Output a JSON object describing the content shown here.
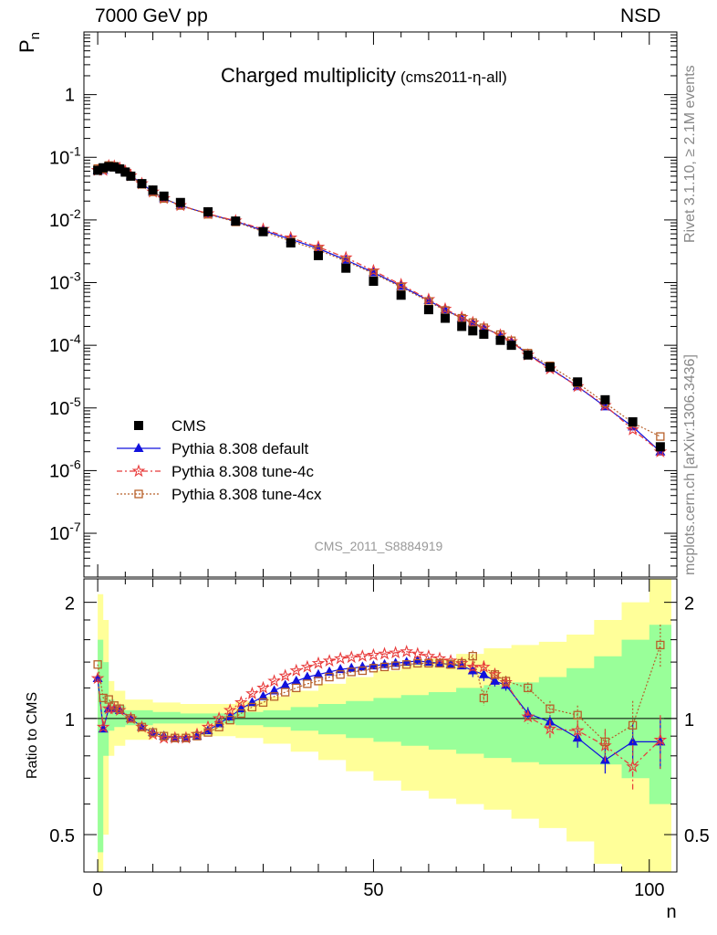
{
  "header": {
    "energy_label": "7000 GeV pp",
    "process_label": "NSD"
  },
  "side_labels": {
    "rivet": "Rivet 3.1.10, ≥ 2.1M events",
    "mcplots": "mcplots.cern.ch [arXiv:1306.3436]"
  },
  "chart_data": [
    {
      "type": "scatter",
      "title": "Charged multiplicity",
      "subtitle": "(cms2011-η-all)",
      "watermark": "CMS_2011_S8884919",
      "xlabel": "",
      "ylabel": "P_n",
      "yscale": "log",
      "ylim": [
        2e-08,
        10
      ],
      "xlim": [
        -2.5,
        105
      ],
      "ytick_labels": [
        "1",
        "10^-1",
        "10^-2",
        "10^-3",
        "10^-4",
        "10^-5",
        "10^-6",
        "10^-7"
      ],
      "legend_position": "lower-left",
      "series": [
        {
          "name": "CMS",
          "color": "#000000",
          "marker": "filled-square",
          "x": [
            0,
            1,
            2,
            3,
            4,
            5,
            6,
            8,
            10,
            12,
            15,
            20,
            25,
            30,
            35,
            40,
            45,
            50,
            55,
            60,
            63,
            66,
            68,
            70,
            73,
            75,
            78,
            82,
            87,
            92,
            97,
            102
          ],
          "y": [
            0.062,
            0.068,
            0.071,
            0.07,
            0.065,
            0.058,
            0.05,
            0.038,
            0.03,
            0.024,
            0.019,
            0.0135,
            0.0096,
            0.0065,
            0.0043,
            0.0027,
            0.0017,
            0.00105,
            0.00063,
            0.00037,
            0.00027,
            0.0002,
            0.00017,
            0.00015,
            0.00012,
            0.0001,
            7e-05,
            4.5e-05,
            2.6e-05,
            1.35e-05,
            6e-06,
            2.4e-06
          ]
        },
        {
          "name": "Pythia 8.308 default",
          "color": "#1111dd",
          "marker": "filled-triangle",
          "x": [
            0,
            1,
            2,
            3,
            4,
            5,
            6,
            8,
            10,
            12,
            15,
            20,
            25,
            30,
            35,
            40,
            45,
            50,
            55,
            60,
            63,
            66,
            68,
            70,
            73,
            75,
            78,
            82,
            87,
            92,
            97,
            102
          ],
          "y": [
            0.062,
            0.062,
            0.073,
            0.072,
            0.067,
            0.06,
            0.051,
            0.038,
            0.028,
            0.022,
            0.017,
            0.0125,
            0.0095,
            0.0068,
            0.0049,
            0.0035,
            0.0023,
            0.00145,
            0.00088,
            0.00052,
            0.00037,
            0.00027,
            0.00023,
            0.00019,
            0.000145,
            0.000115,
            7.2e-05,
            4.3e-05,
            2.2e-05,
            1.05e-05,
            5e-06,
            2e-06
          ]
        },
        {
          "name": "Pythia 8.308 tune-4c",
          "color": "#e83a3a",
          "marker": "open-star",
          "x": [
            0,
            1,
            2,
            3,
            4,
            5,
            6,
            8,
            10,
            12,
            15,
            20,
            25,
            30,
            35,
            40,
            45,
            50,
            55,
            60,
            63,
            66,
            68,
            70,
            73,
            75,
            78,
            82,
            87,
            92,
            97,
            102
          ],
          "y": [
            0.062,
            0.062,
            0.073,
            0.072,
            0.067,
            0.06,
            0.051,
            0.038,
            0.028,
            0.022,
            0.017,
            0.0126,
            0.0097,
            0.0071,
            0.0052,
            0.0037,
            0.0025,
            0.00155,
            0.00093,
            0.00054,
            0.00038,
            0.00028,
            0.00023,
            0.00019,
            0.000145,
            0.000115,
            7e-05,
            4.2e-05,
            2.2e-05,
            1.1e-05,
            4.5e-06,
            2e-06
          ]
        },
        {
          "name": "Pythia 8.308 tune-4cx",
          "color": "#b8602a",
          "marker": "open-square",
          "x": [
            0,
            1,
            2,
            3,
            4,
            5,
            6,
            8,
            10,
            12,
            15,
            20,
            25,
            30,
            35,
            40,
            45,
            50,
            55,
            60,
            63,
            66,
            68,
            70,
            73,
            75,
            78,
            82,
            87,
            92,
            97,
            102
          ],
          "y": [
            0.066,
            0.065,
            0.074,
            0.072,
            0.066,
            0.059,
            0.05,
            0.037,
            0.028,
            0.022,
            0.017,
            0.0123,
            0.0093,
            0.0065,
            0.0046,
            0.0033,
            0.0022,
            0.0014,
            0.00085,
            0.0005,
            0.00036,
            0.00027,
            0.00023,
            0.00019,
            0.000148,
            0.000118,
            7.5e-05,
            4.7e-05,
            2.5e-05,
            1.2e-05,
            5.8e-06,
            3.5e-06
          ]
        }
      ]
    },
    {
      "type": "line",
      "xlabel": "n",
      "ylabel": "Ratio to CMS",
      "ylim": [
        0.4,
        2.3
      ],
      "yscale": "log",
      "xlim": [
        -2.5,
        105
      ],
      "xtick_labels": [
        "0",
        "50",
        "100"
      ],
      "ytick_labels": [
        "0.5",
        "1",
        "2"
      ],
      "reference_line": 1,
      "bands": {
        "inner_color": "#99ff99",
        "outer_color": "#ffff99",
        "x": [
          0,
          1,
          2,
          3,
          5,
          10,
          15,
          20,
          25,
          30,
          35,
          40,
          45,
          50,
          55,
          60,
          65,
          70,
          75,
          80,
          85,
          90,
          95,
          100,
          104
        ],
        "inner_low": [
          0.45,
          0.8,
          0.93,
          0.95,
          0.96,
          0.97,
          0.97,
          0.97,
          0.96,
          0.95,
          0.93,
          0.91,
          0.89,
          0.87,
          0.85,
          0.83,
          0.81,
          0.79,
          0.77,
          0.76,
          0.76,
          0.76,
          0.7,
          0.6,
          0.55
        ],
        "inner_high": [
          1.6,
          1.4,
          1.12,
          1.08,
          1.05,
          1.04,
          1.03,
          1.03,
          1.04,
          1.05,
          1.07,
          1.09,
          1.11,
          1.13,
          1.15,
          1.17,
          1.2,
          1.22,
          1.24,
          1.28,
          1.35,
          1.45,
          1.6,
          1.75,
          1.8
        ],
        "outer_low": [
          0.2,
          0.5,
          0.8,
          0.85,
          0.88,
          0.9,
          0.9,
          0.9,
          0.89,
          0.86,
          0.82,
          0.78,
          0.73,
          0.69,
          0.65,
          0.62,
          0.6,
          0.58,
          0.55,
          0.52,
          0.48,
          0.42,
          0.35,
          0.3,
          0.3
        ],
        "outer_high": [
          2.1,
          1.8,
          1.25,
          1.18,
          1.12,
          1.1,
          1.09,
          1.09,
          1.11,
          1.14,
          1.18,
          1.23,
          1.28,
          1.33,
          1.38,
          1.43,
          1.47,
          1.52,
          1.55,
          1.58,
          1.65,
          1.8,
          2.0,
          2.3,
          2.3
        ]
      },
      "series": [
        {
          "name": "Pythia 8.308 default",
          "color": "#1111dd",
          "marker": "filled-triangle",
          "x": [
            0,
            1,
            2,
            3,
            4,
            6,
            8,
            10,
            12,
            14,
            16,
            18,
            20,
            22,
            24,
            26,
            28,
            30,
            32,
            34,
            36,
            38,
            40,
            42,
            44,
            46,
            48,
            50,
            52,
            54,
            56,
            58,
            60,
            62,
            64,
            66,
            68,
            70,
            72,
            74,
            78,
            82,
            87,
            92,
            97,
            102
          ],
          "y": [
            1.27,
            0.94,
            1.06,
            1.06,
            1.05,
            1.0,
            0.95,
            0.92,
            0.9,
            0.89,
            0.89,
            0.9,
            0.93,
            0.97,
            1.01,
            1.06,
            1.1,
            1.14,
            1.18,
            1.22,
            1.25,
            1.28,
            1.3,
            1.32,
            1.34,
            1.35,
            1.36,
            1.37,
            1.38,
            1.39,
            1.4,
            1.41,
            1.4,
            1.39,
            1.38,
            1.37,
            1.33,
            1.3,
            1.25,
            1.22,
            1.03,
            0.98,
            0.89,
            0.78,
            0.87,
            0.87
          ],
          "yerr": [
            0,
            0,
            0,
            0,
            0,
            0,
            0,
            0,
            0,
            0,
            0,
            0,
            0,
            0,
            0,
            0,
            0,
            0,
            0,
            0,
            0,
            0,
            0,
            0,
            0,
            0,
            0,
            0,
            0,
            0,
            0,
            0,
            0,
            0,
            0,
            0,
            0.05,
            0.05,
            0.04,
            0.04,
            0.04,
            0.04,
            0.05,
            0.06,
            0.1,
            0.13
          ]
        },
        {
          "name": "Pythia 8.308 tune-4c",
          "color": "#e83a3a",
          "marker": "open-star",
          "x": [
            0,
            1,
            2,
            3,
            4,
            6,
            8,
            10,
            12,
            14,
            16,
            18,
            20,
            22,
            24,
            26,
            28,
            30,
            32,
            34,
            36,
            38,
            40,
            42,
            44,
            46,
            48,
            50,
            52,
            54,
            56,
            58,
            60,
            62,
            64,
            66,
            68,
            70,
            72,
            74,
            78,
            82,
            87,
            92,
            97,
            102
          ],
          "y": [
            1.27,
            0.95,
            1.06,
            1.06,
            1.05,
            1.0,
            0.95,
            0.91,
            0.89,
            0.89,
            0.89,
            0.91,
            0.95,
            1.0,
            1.05,
            1.1,
            1.16,
            1.2,
            1.25,
            1.29,
            1.33,
            1.36,
            1.39,
            1.41,
            1.43,
            1.44,
            1.45,
            1.46,
            1.47,
            1.48,
            1.49,
            1.47,
            1.45,
            1.43,
            1.41,
            1.39,
            1.36,
            1.36,
            1.3,
            1.24,
            1.01,
            0.94,
            0.93,
            0.85,
            0.75,
            0.88
          ],
          "yerr": [
            0,
            0,
            0,
            0,
            0,
            0,
            0,
            0,
            0,
            0,
            0,
            0,
            0,
            0,
            0,
            0,
            0,
            0,
            0,
            0,
            0,
            0,
            0,
            0,
            0,
            0,
            0,
            0,
            0,
            0,
            0,
            0,
            0,
            0,
            0,
            0,
            0.05,
            0.05,
            0.05,
            0.04,
            0.04,
            0.05,
            0.06,
            0.08,
            0.1,
            0.14
          ]
        },
        {
          "name": "Pythia 8.308 tune-4cx",
          "color": "#b8602a",
          "marker": "open-square",
          "x": [
            0,
            1,
            2,
            3,
            4,
            6,
            8,
            10,
            12,
            14,
            16,
            18,
            20,
            22,
            24,
            26,
            28,
            30,
            32,
            34,
            36,
            38,
            40,
            42,
            44,
            46,
            48,
            50,
            52,
            54,
            56,
            58,
            60,
            62,
            64,
            66,
            68,
            70,
            72,
            74,
            78,
            82,
            87,
            92,
            97,
            102
          ],
          "y": [
            1.38,
            1.13,
            1.12,
            1.08,
            1.06,
            1.0,
            0.95,
            0.92,
            0.9,
            0.89,
            0.89,
            0.9,
            0.92,
            0.95,
            0.99,
            1.03,
            1.07,
            1.1,
            1.14,
            1.17,
            1.2,
            1.23,
            1.25,
            1.28,
            1.3,
            1.32,
            1.33,
            1.35,
            1.36,
            1.37,
            1.38,
            1.39,
            1.39,
            1.39,
            1.38,
            1.39,
            1.45,
            1.13,
            1.3,
            1.25,
            1.2,
            1.06,
            1.02,
            0.87,
            0.96,
            1.55
          ],
          "yerr": [
            0,
            0,
            0,
            0,
            0,
            0,
            0,
            0,
            0,
            0,
            0,
            0,
            0,
            0,
            0,
            0,
            0,
            0,
            0,
            0,
            0,
            0,
            0,
            0,
            0,
            0,
            0,
            0,
            0,
            0,
            0,
            0,
            0,
            0,
            0,
            0,
            0.05,
            0.05,
            0.04,
            0.04,
            0.04,
            0.05,
            0.06,
            0.07,
            0.15,
            0.2
          ]
        }
      ]
    }
  ]
}
